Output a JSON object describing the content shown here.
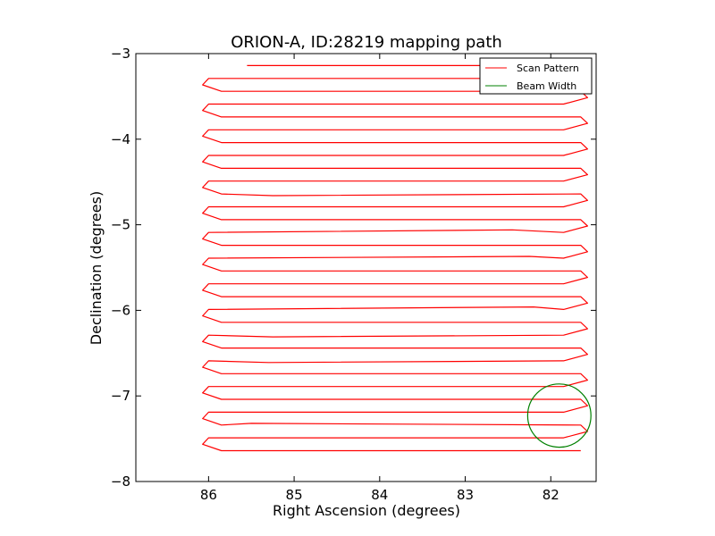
{
  "chart_data": {
    "type": "line",
    "title": "ORION-A, ID:28219 mapping path",
    "xlabel": "Right Ascension (degrees)",
    "ylabel": "Declination (degrees)",
    "xlim": [
      86.85,
      81.47
    ],
    "ylim": [
      -8,
      -3
    ],
    "x_ticks": [
      86,
      85,
      84,
      83,
      82
    ],
    "x_tick_labels": [
      "86",
      "85",
      "84",
      "83",
      "82"
    ],
    "y_ticks": [
      -3,
      -4,
      -5,
      -6,
      -7,
      -8
    ],
    "y_tick_labels": [
      "−3",
      "−4",
      "−5",
      "−6",
      "−7",
      "−8"
    ],
    "x_inverted": true,
    "grid": false,
    "legend": {
      "position": "top-right"
    },
    "series": [
      {
        "name": "Scan Pattern",
        "color": "#ff0000",
        "style": "raster",
        "rows_dec": [
          -3.14,
          -3.29,
          -3.44,
          -3.59,
          -3.74,
          -3.89,
          -4.04,
          -4.19,
          -4.34,
          -4.49,
          -4.64,
          -4.79,
          -4.94,
          -5.09,
          -5.24,
          -5.39,
          -5.54,
          -5.69,
          -5.84,
          -5.99,
          -6.14,
          -6.29,
          -6.44,
          -6.59,
          -6.74,
          -6.89,
          -7.04,
          -7.19,
          -7.34,
          -7.49,
          -7.64
        ],
        "ra_east_end": 86.05,
        "ra_west_end": 81.6,
        "first_row_ra_start": 85.55,
        "jitter": [
          {
            "row": 10,
            "ra": 85.25,
            "d": -0.02
          },
          {
            "row": 13,
            "ra": 82.45,
            "d": 0.03
          },
          {
            "row": 15,
            "ra": 82.25,
            "d": 0.02
          },
          {
            "row": 19,
            "ra": 82.2,
            "d": 0.03
          },
          {
            "row": 21,
            "ra": 85.25,
            "d": -0.02
          },
          {
            "row": 23,
            "ra": 85.3,
            "d": -0.02
          },
          {
            "row": 28,
            "ra": 85.5,
            "d": 0.02
          }
        ]
      },
      {
        "name": "Beam Width",
        "color": "#008000",
        "style": "circle",
        "center_ra": 81.9,
        "center_dec": -7.23,
        "radius_deg": 0.37
      }
    ]
  }
}
